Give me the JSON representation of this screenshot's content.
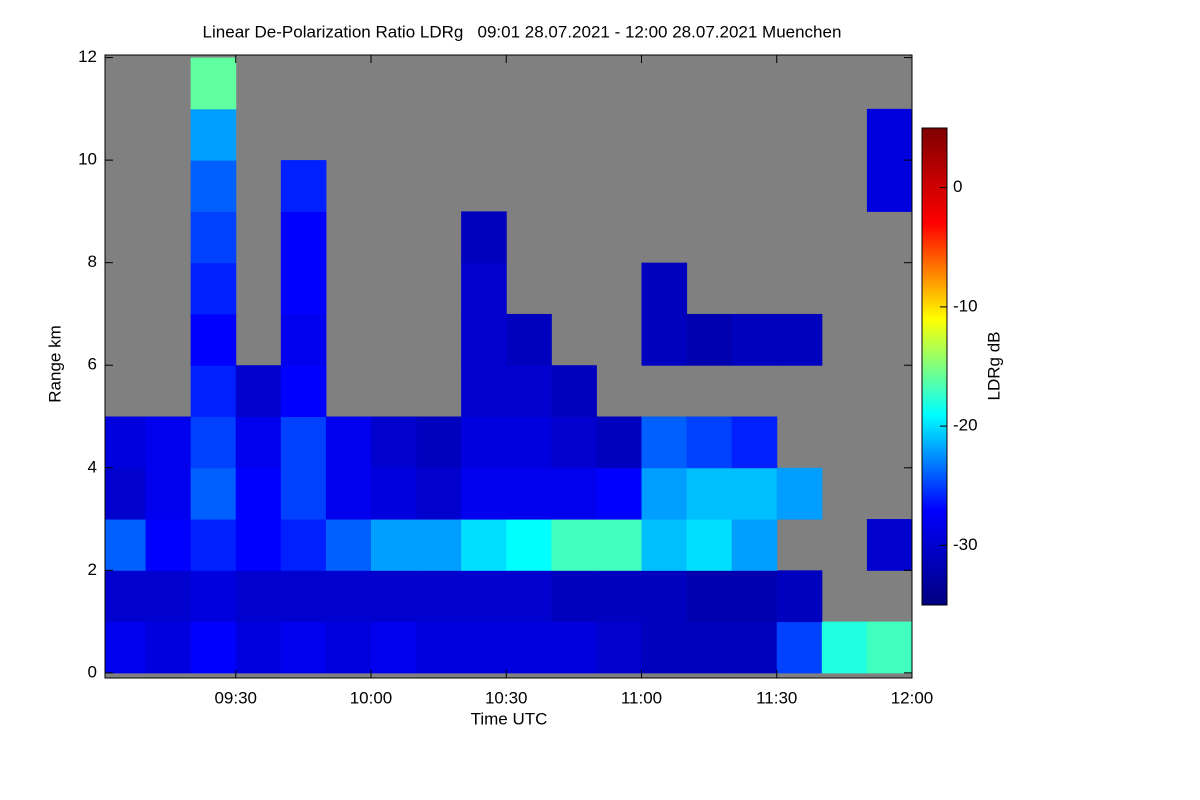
{
  "chart_data": {
    "type": "heatmap",
    "title": "Linear De-Polarization Ratio LDRg   09:01 28.07.2021 - 12:00 28.07.2021 Muenchen",
    "xlabel": "Time UTC",
    "ylabel": "Range km",
    "colorbar_label": "LDRg dB",
    "xlim": [
      9.0167,
      12
    ],
    "xticks": [
      {
        "value": 9.5,
        "label": "09:30"
      },
      {
        "value": 10,
        "label": "10:00"
      },
      {
        "value": 10.5,
        "label": "10:30"
      },
      {
        "value": 11,
        "label": "11:00"
      },
      {
        "value": 11.5,
        "label": "11:30"
      },
      {
        "value": 12,
        "label": "12:00"
      }
    ],
    "ylim": [
      -0.1,
      12.05
    ],
    "yticks": [
      0,
      2,
      4,
      6,
      8,
      10,
      12
    ],
    "clim": [
      -35,
      5
    ],
    "cticks": [
      0,
      -10,
      -20,
      -30
    ],
    "colorscale": [
      "#00007f",
      "#0000ff",
      "#00ffff",
      "#ffff00",
      "#ff0000",
      "#7f0000"
    ],
    "background": "#808080",
    "x_edges": [
      9.0167,
      9.1667,
      9.3333,
      9.5,
      9.6667,
      9.8333,
      10,
      10.1667,
      10.3333,
      10.5,
      10.6667,
      10.8333,
      11,
      11.1667,
      11.3333,
      11.5,
      11.6667,
      11.8333,
      12
    ],
    "y_edges": [
      0,
      1,
      2,
      3,
      4,
      5,
      6,
      7,
      8,
      9,
      10,
      11,
      12
    ],
    "z": [
      [
        -28,
        -29,
        -27,
        -29,
        -28,
        -29,
        -28,
        -29,
        -29,
        -29,
        -29,
        -30,
        -31,
        -31,
        -31,
        -25,
        -18,
        -17
      ],
      [
        -30,
        -30,
        -29,
        -30,
        -30,
        -30,
        -30,
        -30,
        -30,
        -30,
        -31,
        -31,
        -31,
        -32,
        -32,
        -31,
        null,
        null
      ],
      [
        -24,
        -27,
        -26,
        -27,
        -26,
        -24,
        -22,
        -22,
        -20,
        -19,
        -17,
        -17,
        -21,
        -20,
        -22,
        null,
        null,
        -30
      ],
      [
        -30,
        -28,
        -24,
        -27,
        -25,
        -28,
        -29,
        -30,
        -28,
        -28,
        -28,
        -27,
        -22,
        -21,
        -21,
        -22,
        null,
        null
      ],
      [
        -29,
        -28,
        -25,
        -28,
        -25,
        -28,
        -30,
        -31,
        -29,
        -29,
        -30,
        -31,
        -24,
        -25,
        -26,
        null,
        null,
        null
      ],
      [
        null,
        null,
        -26,
        -30,
        -27,
        null,
        null,
        null,
        -30,
        -30,
        -31,
        null,
        null,
        null,
        null,
        null,
        null,
        null
      ],
      [
        null,
        null,
        -27,
        null,
        -28,
        null,
        null,
        null,
        -30,
        -31,
        null,
        null,
        -31,
        -32,
        -31,
        -31,
        null,
        null
      ],
      [
        null,
        null,
        -26,
        null,
        -27,
        null,
        null,
        null,
        -30,
        null,
        null,
        null,
        -31,
        null,
        null,
        null,
        null,
        null
      ],
      [
        null,
        null,
        -25,
        null,
        -27,
        null,
        null,
        null,
        -31,
        null,
        null,
        null,
        null,
        null,
        null,
        null,
        null,
        null
      ],
      [
        null,
        null,
        -24,
        null,
        -26,
        null,
        null,
        null,
        null,
        null,
        null,
        null,
        null,
        null,
        null,
        null,
        null,
        -29
      ],
      [
        null,
        null,
        -22,
        null,
        null,
        null,
        null,
        null,
        null,
        null,
        null,
        null,
        null,
        null,
        null,
        null,
        null,
        -29
      ],
      [
        null,
        null,
        -16,
        null,
        null,
        null,
        null,
        null,
        null,
        null,
        null,
        null,
        null,
        null,
        null,
        null,
        null,
        null
      ]
    ]
  }
}
